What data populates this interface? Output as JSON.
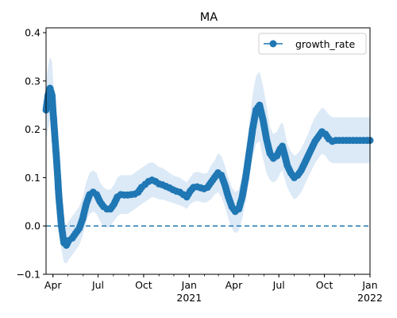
{
  "chart_data": {
    "type": "line",
    "title": "MA",
    "xlabel": "",
    "ylabel": "",
    "x_range": [
      "2020-03-18",
      "2022-01-01"
    ],
    "ylim": [
      -0.1,
      0.41
    ],
    "y_ticks": [
      -0.1,
      0.0,
      0.1,
      0.2,
      0.3,
      0.4
    ],
    "y_tick_labels": [
      "−0.1",
      "0.0",
      "0.1",
      "0.2",
      "0.3",
      "0.4"
    ],
    "x_ticks": [
      {
        "date": "2020-04-01",
        "label": "Apr",
        "label2": ""
      },
      {
        "date": "2020-07-01",
        "label": "Jul",
        "label2": ""
      },
      {
        "date": "2020-10-01",
        "label": "Oct",
        "label2": ""
      },
      {
        "date": "2021-01-01",
        "label": "Jan",
        "label2": "2021"
      },
      {
        "date": "2021-04-01",
        "label": "Apr",
        "label2": ""
      },
      {
        "date": "2021-07-01",
        "label": "Jul",
        "label2": ""
      },
      {
        "date": "2021-10-01",
        "label": "Oct",
        "label2": ""
      },
      {
        "date": "2022-01-01",
        "label": "Jan",
        "label2": "2022"
      }
    ],
    "grid": false,
    "legend_position": "top-right",
    "reference_line": {
      "y": 0.0,
      "style": "dashed",
      "color": "#1f77b4"
    },
    "series": [
      {
        "name": "growth_rate",
        "color": "#1f77b4",
        "band_color": "#dce9f6",
        "x": [
          "2020-03-18",
          "2020-03-22",
          "2020-03-26",
          "2020-03-30",
          "2020-04-03",
          "2020-04-08",
          "2020-04-13",
          "2020-04-18",
          "2020-04-23",
          "2020-04-28",
          "2020-05-03",
          "2020-05-10",
          "2020-05-17",
          "2020-05-24",
          "2020-05-31",
          "2020-06-07",
          "2020-06-14",
          "2020-06-21",
          "2020-06-28",
          "2020-07-05",
          "2020-07-12",
          "2020-07-19",
          "2020-07-26",
          "2020-08-02",
          "2020-08-09",
          "2020-08-16",
          "2020-08-23",
          "2020-08-30",
          "2020-09-06",
          "2020-09-13",
          "2020-09-20",
          "2020-09-27",
          "2020-10-04",
          "2020-10-11",
          "2020-10-18",
          "2020-10-25",
          "2020-11-01",
          "2020-11-08",
          "2020-11-15",
          "2020-11-22",
          "2020-11-29",
          "2020-12-06",
          "2020-12-13",
          "2020-12-20",
          "2020-12-27",
          "2021-01-03",
          "2021-01-10",
          "2021-01-17",
          "2021-01-24",
          "2021-01-31",
          "2021-02-07",
          "2021-02-14",
          "2021-02-21",
          "2021-02-28",
          "2021-03-07",
          "2021-03-14",
          "2021-03-21",
          "2021-03-28",
          "2021-04-04",
          "2021-04-11",
          "2021-04-18",
          "2021-04-25",
          "2021-05-02",
          "2021-05-09",
          "2021-05-16",
          "2021-05-23",
          "2021-05-30",
          "2021-06-06",
          "2021-06-13",
          "2021-06-20",
          "2021-06-27",
          "2021-07-04",
          "2021-07-08",
          "2021-07-12",
          "2021-07-18",
          "2021-07-25",
          "2021-08-01",
          "2021-08-08",
          "2021-08-15",
          "2021-08-22",
          "2021-08-29",
          "2021-09-05",
          "2021-09-12",
          "2021-09-19",
          "2021-09-26",
          "2021-10-03",
          "2021-10-10",
          "2021-10-17",
          "2021-10-24",
          "2021-10-31",
          "2021-11-07",
          "2021-11-14",
          "2021-11-21",
          "2021-11-28",
          "2021-12-05",
          "2021-12-12",
          "2021-12-19",
          "2021-12-26",
          "2022-01-01"
        ],
        "values": [
          0.24,
          0.27,
          0.285,
          0.27,
          0.21,
          0.14,
          0.06,
          0.0,
          -0.035,
          -0.04,
          -0.03,
          -0.025,
          -0.015,
          -0.005,
          0.015,
          0.045,
          0.065,
          0.07,
          0.065,
          0.05,
          0.04,
          0.035,
          0.035,
          0.045,
          0.06,
          0.065,
          0.064,
          0.064,
          0.065,
          0.066,
          0.07,
          0.08,
          0.086,
          0.092,
          0.095,
          0.092,
          0.087,
          0.085,
          0.082,
          0.079,
          0.075,
          0.072,
          0.07,
          0.065,
          0.06,
          0.072,
          0.08,
          0.081,
          0.079,
          0.077,
          0.08,
          0.09,
          0.1,
          0.11,
          0.105,
          0.085,
          0.06,
          0.04,
          0.03,
          0.035,
          0.06,
          0.1,
          0.15,
          0.2,
          0.24,
          0.25,
          0.22,
          0.18,
          0.15,
          0.14,
          0.145,
          0.16,
          0.165,
          0.15,
          0.125,
          0.11,
          0.1,
          0.105,
          0.115,
          0.13,
          0.145,
          0.16,
          0.175,
          0.185,
          0.195,
          0.19,
          0.18,
          0.175,
          0.177,
          0.177,
          0.177,
          0.177,
          0.177,
          0.177,
          0.177,
          0.177,
          0.177,
          0.177,
          0.177
        ],
        "lower": [
          0.18,
          0.2,
          0.22,
          0.2,
          0.16,
          0.09,
          0.01,
          -0.05,
          -0.075,
          -0.078,
          -0.07,
          -0.06,
          -0.05,
          -0.04,
          -0.02,
          0.01,
          0.025,
          0.03,
          0.025,
          0.01,
          0.0,
          -0.005,
          0.0,
          0.01,
          0.02,
          0.025,
          0.025,
          0.025,
          0.03,
          0.035,
          0.04,
          0.045,
          0.05,
          0.055,
          0.06,
          0.058,
          0.055,
          0.055,
          0.052,
          0.05,
          0.048,
          0.045,
          0.043,
          0.04,
          0.035,
          0.045,
          0.05,
          0.052,
          0.05,
          0.048,
          0.05,
          0.055,
          0.065,
          0.07,
          0.06,
          0.04,
          0.015,
          -0.005,
          -0.015,
          -0.01,
          0.015,
          0.05,
          0.095,
          0.14,
          0.17,
          0.175,
          0.14,
          0.11,
          0.095,
          0.09,
          0.095,
          0.11,
          0.115,
          0.1,
          0.08,
          0.065,
          0.055,
          0.06,
          0.07,
          0.085,
          0.1,
          0.115,
          0.13,
          0.14,
          0.15,
          0.145,
          0.135,
          0.13,
          0.13,
          0.13,
          0.13,
          0.13,
          0.13,
          0.13,
          0.13,
          0.13,
          0.13,
          0.13,
          0.13
        ],
        "upper": [
          0.3,
          0.33,
          0.35,
          0.34,
          0.27,
          0.2,
          0.11,
          0.05,
          0.01,
          0.0,
          0.01,
          0.02,
          0.03,
          0.04,
          0.06,
          0.09,
          0.11,
          0.115,
          0.11,
          0.09,
          0.08,
          0.075,
          0.075,
          0.085,
          0.1,
          0.105,
          0.105,
          0.105,
          0.105,
          0.11,
          0.115,
          0.12,
          0.125,
          0.13,
          0.132,
          0.128,
          0.122,
          0.12,
          0.115,
          0.11,
          0.105,
          0.102,
          0.1,
          0.095,
          0.09,
          0.1,
          0.11,
          0.112,
          0.11,
          0.108,
          0.11,
          0.125,
          0.135,
          0.15,
          0.145,
          0.125,
          0.1,
          0.08,
          0.07,
          0.075,
          0.105,
          0.15,
          0.21,
          0.27,
          0.31,
          0.32,
          0.29,
          0.25,
          0.205,
          0.19,
          0.195,
          0.21,
          0.215,
          0.2,
          0.17,
          0.155,
          0.145,
          0.15,
          0.16,
          0.175,
          0.19,
          0.21,
          0.225,
          0.235,
          0.245,
          0.24,
          0.23,
          0.225,
          0.225,
          0.225,
          0.225,
          0.225,
          0.225,
          0.225,
          0.225,
          0.225,
          0.225,
          0.225,
          0.225
        ]
      }
    ]
  }
}
